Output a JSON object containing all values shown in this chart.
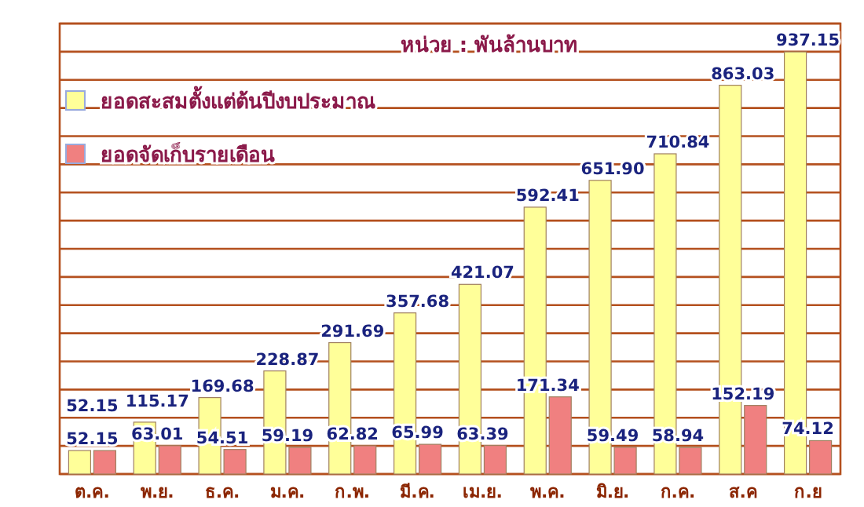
{
  "chart_data": {
    "type": "bar",
    "title": "หน่วย : พันล้านบาท",
    "categories": [
      "ต.ค.",
      "พ.ย.",
      "ธ.ค.",
      "ม.ค.",
      "ก.พ.",
      "มี.ค.",
      "เม.ย.",
      "พ.ค.",
      "มิ.ย.",
      "ก.ค.",
      "ส.ค",
      "ก.ย"
    ],
    "series": [
      {
        "name": "ยอดสะสมตั้งแต่ต้นปีงบประมาณ",
        "color": "#ffff99",
        "values": [
          52.15,
          115.17,
          169.68,
          228.87,
          291.69,
          357.68,
          421.07,
          592.41,
          651.9,
          710.84,
          863.03,
          937.15
        ],
        "value_labels": [
          "52.15",
          "115.17",
          "169.68",
          "228.87",
          "291.69",
          "357.68",
          "421.07",
          "592.41",
          "651.90",
          "710.84",
          "863.03",
          "937.15"
        ]
      },
      {
        "name": "ยอดจัดเก็บรายเดือน",
        "color": "#f08080",
        "values": [
          52.15,
          63.01,
          54.51,
          59.19,
          62.82,
          65.99,
          63.39,
          171.34,
          59.49,
          58.94,
          152.19,
          74.12
        ],
        "value_labels": [
          "52.15",
          "63.01",
          "54.51",
          "59.19",
          "62.82",
          "65.99",
          "63.39",
          "171.34",
          "59.49",
          "58.94",
          "152.19",
          "74.12"
        ]
      }
    ],
    "ylim": [
      0,
      1000
    ],
    "yticks": [
      {
        "value": 0,
        "label": null
      },
      {
        "value": 62.5,
        "label": null
      },
      {
        "value": 125,
        "label": null
      },
      {
        "value": 187.5,
        "label": null
      },
      {
        "value": 250,
        "label": null
      },
      {
        "value": 312.5,
        "label": null
      },
      {
        "value": 375,
        "label": null
      },
      {
        "value": 437.5,
        "label": null
      },
      {
        "value": 500,
        "label": null
      },
      {
        "value": 562.5,
        "label": null
      },
      {
        "value": 625,
        "label": null
      },
      {
        "value": 687.5,
        "label": null
      },
      {
        "value": 750,
        "label": null
      },
      {
        "value": 812.5,
        "label": null
      },
      {
        "value": 875,
        "label": null
      },
      {
        "value": 937.5,
        "label": null
      },
      {
        "value": 1000,
        "label": null
      }
    ],
    "grid": "y",
    "legend": "top left"
  }
}
